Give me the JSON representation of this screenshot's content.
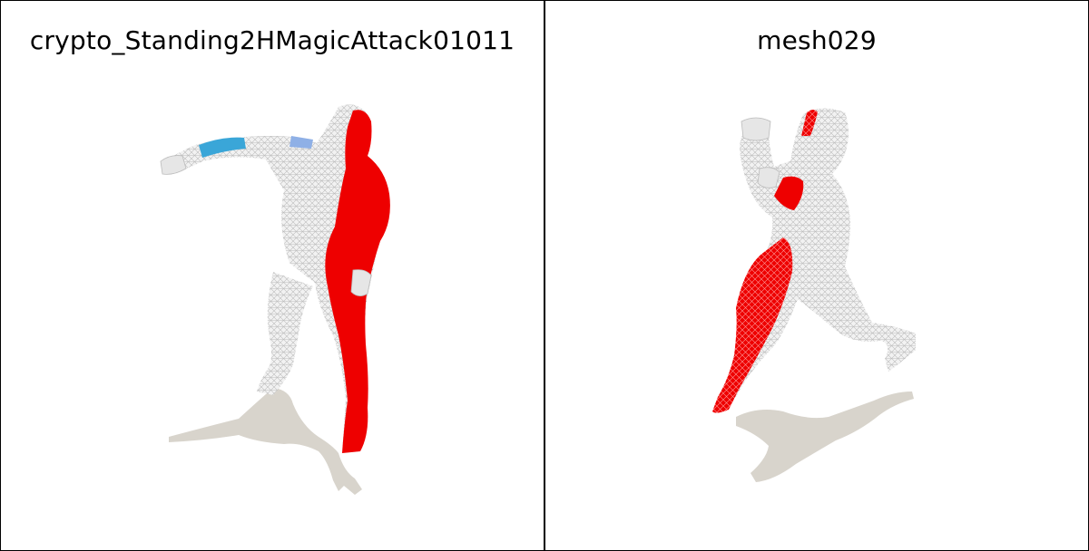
{
  "panels": [
    {
      "title": "crypto_Standing2HMagicAttack01011"
    },
    {
      "title": "mesh029"
    }
  ],
  "colors": {
    "background": "#ffffff",
    "border": "#000000",
    "mesh_highlight": "#ee0000",
    "mesh_wire": "#d9d9d9",
    "shadow": "#d8d4cc",
    "accent_blue": "#3aa6d8"
  }
}
